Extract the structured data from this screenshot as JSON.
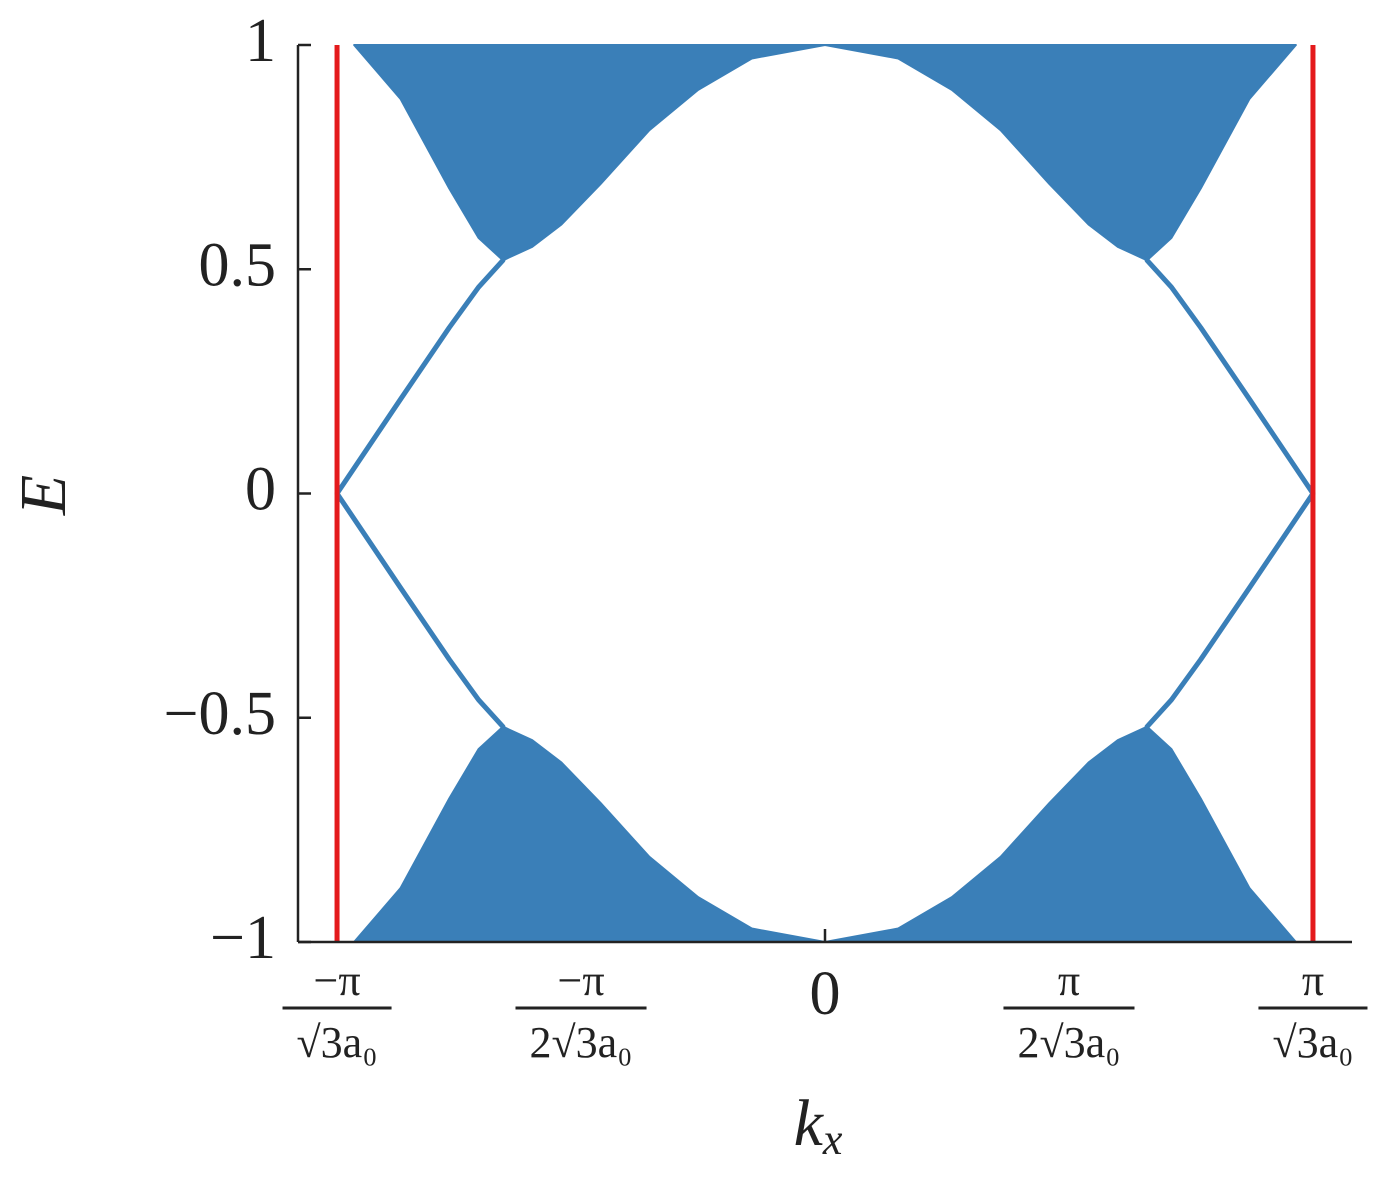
{
  "chart_data": {
    "type": "line",
    "xlabel": {
      "base": "k",
      "sub": "x"
    },
    "ylabel": "E",
    "xlim": [
      -1.08,
      1.08
    ],
    "ylim": [
      -1,
      1
    ],
    "xticks": [
      {
        "value": -1,
        "label": {
          "numerator": "−π",
          "denominator": "√3a₀"
        }
      },
      {
        "value": -0.5,
        "label": {
          "numerator": "−π",
          "denominator": "2√3a₀"
        }
      },
      0,
      {
        "value": 0.5,
        "label": {
          "numerator": "π",
          "denominator": "2√3a₀"
        }
      },
      {
        "value": 1,
        "label": {
          "numerator": "π",
          "denominator": "√3a₀"
        }
      }
    ],
    "yticks": [
      {
        "value": -1,
        "label": "−1"
      },
      {
        "value": -0.5,
        "label": "−0.5"
      },
      0,
      0.5,
      1
    ],
    "series": [
      {
        "color": "#3a7fb8",
        "fill": "above",
        "x": [
          -0.965,
          -0.87,
          -0.77,
          -0.71,
          -0.66,
          -0.6,
          -0.54,
          -0.46,
          -0.36,
          -0.26,
          -0.15,
          0,
          0.15,
          0.26,
          0.36,
          0.46,
          0.54,
          0.6,
          0.66,
          0.71,
          0.77,
          0.87,
          0.965
        ],
        "values": [
          1,
          0.88,
          0.68,
          0.57,
          0.52,
          0.55,
          0.6,
          0.69,
          0.81,
          0.9,
          0.97,
          1,
          0.97,
          0.9,
          0.81,
          0.69,
          0.6,
          0.55,
          0.52,
          0.57,
          0.68,
          0.88,
          1
        ]
      },
      {
        "color": "#3a7fb8",
        "fill": "below",
        "x": [
          -0.965,
          -0.87,
          -0.77,
          -0.71,
          -0.66,
          -0.6,
          -0.54,
          -0.46,
          -0.36,
          -0.26,
          -0.15,
          0,
          0.15,
          0.26,
          0.36,
          0.46,
          0.54,
          0.6,
          0.66,
          0.71,
          0.77,
          0.87,
          0.965
        ],
        "values": [
          -1,
          -0.88,
          -0.68,
          -0.57,
          -0.52,
          -0.55,
          -0.6,
          -0.69,
          -0.81,
          -0.9,
          -0.97,
          -1,
          -0.97,
          -0.9,
          -0.81,
          -0.69,
          -0.6,
          -0.55,
          -0.52,
          -0.57,
          -0.68,
          -0.88,
          -1
        ]
      },
      {
        "color": "#3a7fb8",
        "x": [
          -1,
          -0.87,
          -0.77,
          -0.71,
          -0.66
        ],
        "values": [
          0,
          0.21,
          0.37,
          0.46,
          0.52
        ]
      },
      {
        "color": "#3a7fb8",
        "x": [
          -1,
          -0.87,
          -0.77,
          -0.71,
          -0.66
        ],
        "values": [
          0,
          -0.21,
          -0.37,
          -0.46,
          -0.52
        ]
      },
      {
        "color": "#3a7fb8",
        "x": [
          1,
          0.87,
          0.77,
          0.71,
          0.66
        ],
        "values": [
          0,
          0.21,
          0.37,
          0.46,
          0.52
        ]
      },
      {
        "color": "#3a7fb8",
        "x": [
          1,
          0.87,
          0.77,
          0.71,
          0.66
        ],
        "values": [
          0,
          -0.21,
          -0.37,
          -0.46,
          -0.52
        ]
      }
    ],
    "vlines": [
      {
        "x": -1,
        "color": "#e41a1c"
      },
      {
        "x": 1,
        "color": "#e41a1c"
      }
    ]
  }
}
